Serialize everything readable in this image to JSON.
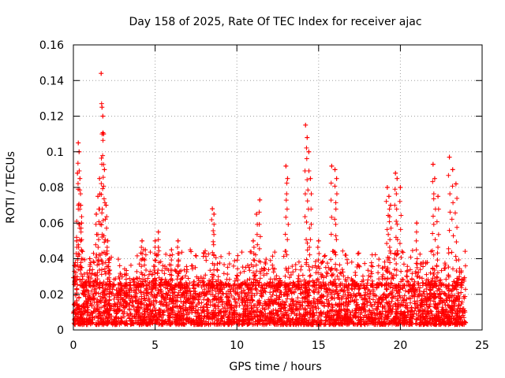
{
  "chart_data": {
    "type": "scatter",
    "title": "Day 158 of 2025, Rate Of TEC Index for receiver ajac",
    "xlabel": "GPS time / hours",
    "ylabel": "ROTI / TECUs",
    "xlim": [
      0,
      25
    ],
    "ylim": [
      0,
      0.16
    ],
    "x_ticks": [
      "0",
      "5",
      "10",
      "15",
      "20",
      "25"
    ],
    "y_ticks": [
      "0",
      "0.02",
      "0.04",
      "0.06",
      "0.08",
      "0.1",
      "0.12",
      "0.14",
      "0.16"
    ],
    "grid": true,
    "legend": "none",
    "marker": "plus",
    "color": "#ff0000",
    "x_data_extent": [
      0,
      24
    ],
    "baseline_band": [
      0.003,
      0.025
    ],
    "x": [
      0.1,
      0.2,
      0.25,
      0.3,
      0.35,
      0.4,
      0.45,
      0.5,
      1.0,
      1.4,
      1.5,
      1.6,
      1.7,
      1.75,
      1.8,
      1.85,
      1.9,
      2.0,
      2.1,
      2.2,
      4.2,
      4.4,
      5.0,
      5.2,
      6.0,
      6.4,
      8.5,
      8.6,
      11.0,
      11.2,
      11.4,
      13.0,
      13.1,
      14.2,
      14.3,
      14.4,
      14.5,
      15.0,
      15.8,
      16.0,
      16.1,
      19.2,
      19.3,
      19.4,
      19.7,
      19.8,
      20.0,
      21.0,
      22.0,
      22.1,
      22.3,
      23.0,
      23.2,
      23.4
    ],
    "y": [
      0.03,
      0.05,
      0.088,
      0.105,
      0.1,
      0.085,
      0.07,
      0.06,
      0.04,
      0.065,
      0.075,
      0.085,
      0.144,
      0.125,
      0.12,
      0.11,
      0.09,
      0.07,
      0.05,
      0.04,
      0.05,
      0.045,
      0.05,
      0.055,
      0.045,
      0.05,
      0.068,
      0.065,
      0.05,
      0.065,
      0.073,
      0.092,
      0.085,
      0.115,
      0.108,
      0.1,
      0.085,
      0.05,
      0.092,
      0.09,
      0.085,
      0.08,
      0.075,
      0.07,
      0.088,
      0.085,
      0.08,
      0.06,
      0.093,
      0.085,
      0.075,
      0.097,
      0.09,
      0.082
    ]
  }
}
